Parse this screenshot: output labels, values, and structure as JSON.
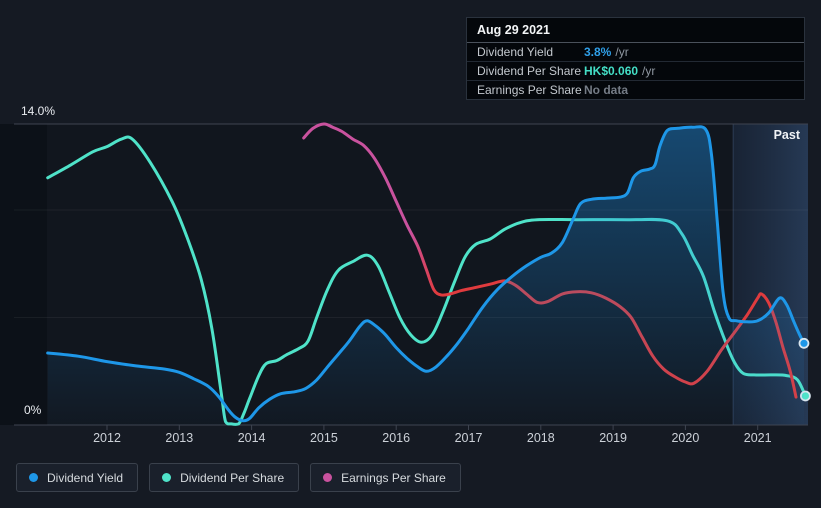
{
  "tooltip": {
    "date": "Aug 29 2021",
    "rows": [
      {
        "label": "Dividend Yield",
        "value": "3.8%",
        "suffix": "/yr",
        "value_color": "#2f9fe8"
      },
      {
        "label": "Dividend Per Share",
        "value": "HK$0.060",
        "suffix": "/yr",
        "value_color": "#44dfc6"
      },
      {
        "label": "Earnings Per Share",
        "value": "No data",
        "suffix": "",
        "value_color": "#757c86"
      }
    ]
  },
  "legend": {
    "items": [
      {
        "label": "Dividend Yield",
        "color": "#1e97e8"
      },
      {
        "label": "Dividend Per Share",
        "color": "#4fe3c9"
      },
      {
        "label": "Earnings Per Share",
        "color": "#c9529e"
      }
    ]
  },
  "chart_data": {
    "type": "line",
    "title": "Dividend history",
    "x_axis": {
      "ticks": [
        2012,
        2013,
        2014,
        2015,
        2016,
        2017,
        2018,
        2019,
        2020,
        2021
      ],
      "range": [
        2011.18,
        2021.7
      ]
    },
    "y_axis": {
      "unit": "%",
      "range": [
        0,
        14
      ],
      "gridlines": [
        0,
        5,
        10,
        14
      ],
      "top_label": "14.0%",
      "bottom_label": "0%"
    },
    "past_band": {
      "label": "Past",
      "start_x": 2020.66
    },
    "legend_position": "bottom-left",
    "series": [
      {
        "name": "Dividend Yield",
        "color": "#1e97e8",
        "area_fill": true,
        "end_dot": true,
        "draw_order": 3,
        "points": [
          [
            2011.18,
            3.35
          ],
          [
            2011.6,
            3.2
          ],
          [
            2012,
            2.95
          ],
          [
            2012.4,
            2.75
          ],
          [
            2012.8,
            2.6
          ],
          [
            2013,
            2.45
          ],
          [
            2013.2,
            2.15
          ],
          [
            2013.4,
            1.8
          ],
          [
            2013.55,
            1.3
          ],
          [
            2013.68,
            0.7
          ],
          [
            2013.78,
            0.35
          ],
          [
            2013.88,
            0.2
          ],
          [
            2013.97,
            0.3
          ],
          [
            2014.1,
            0.8
          ],
          [
            2014.25,
            1.2
          ],
          [
            2014.4,
            1.45
          ],
          [
            2014.6,
            1.55
          ],
          [
            2014.75,
            1.7
          ],
          [
            2014.9,
            2.1
          ],
          [
            2015.05,
            2.7
          ],
          [
            2015.2,
            3.3
          ],
          [
            2015.35,
            3.9
          ],
          [
            2015.5,
            4.6
          ],
          [
            2015.6,
            4.85
          ],
          [
            2015.72,
            4.6
          ],
          [
            2015.85,
            4.2
          ],
          [
            2016,
            3.6
          ],
          [
            2016.15,
            3.1
          ],
          [
            2016.3,
            2.7
          ],
          [
            2016.42,
            2.5
          ],
          [
            2016.55,
            2.7
          ],
          [
            2016.7,
            3.2
          ],
          [
            2016.85,
            3.8
          ],
          [
            2017,
            4.5
          ],
          [
            2017.2,
            5.5
          ],
          [
            2017.4,
            6.3
          ],
          [
            2017.6,
            6.9
          ],
          [
            2017.8,
            7.4
          ],
          [
            2018,
            7.8
          ],
          [
            2018.15,
            8
          ],
          [
            2018.3,
            8.5
          ],
          [
            2018.45,
            9.6
          ],
          [
            2018.55,
            10.3
          ],
          [
            2018.7,
            10.5
          ],
          [
            2018.9,
            10.55
          ],
          [
            2019.1,
            10.6
          ],
          [
            2019.2,
            10.8
          ],
          [
            2019.28,
            11.5
          ],
          [
            2019.38,
            11.8
          ],
          [
            2019.5,
            11.9
          ],
          [
            2019.58,
            12.1
          ],
          [
            2019.65,
            13
          ],
          [
            2019.75,
            13.7
          ],
          [
            2019.9,
            13.8
          ],
          [
            2020.1,
            13.85
          ],
          [
            2020.28,
            13.75
          ],
          [
            2020.36,
            12.6
          ],
          [
            2020.44,
            9.5
          ],
          [
            2020.52,
            6.2
          ],
          [
            2020.6,
            5
          ],
          [
            2020.7,
            4.85
          ],
          [
            2020.85,
            4.8
          ],
          [
            2021,
            4.85
          ],
          [
            2021.15,
            5.2
          ],
          [
            2021.3,
            5.9
          ],
          [
            2021.4,
            5.6
          ],
          [
            2021.5,
            4.8
          ],
          [
            2021.58,
            4.2
          ],
          [
            2021.64,
            3.8
          ]
        ]
      },
      {
        "name": "Dividend Per Share",
        "color": "#4fe3c9",
        "area_fill": false,
        "end_dot": true,
        "draw_order": 1,
        "points": [
          [
            2011.18,
            11.5
          ],
          [
            2011.5,
            12.1
          ],
          [
            2011.8,
            12.7
          ],
          [
            2012,
            12.95
          ],
          [
            2012.2,
            13.3
          ],
          [
            2012.35,
            13.3
          ],
          [
            2012.6,
            12.2
          ],
          [
            2012.9,
            10.4
          ],
          [
            2013.1,
            8.8
          ],
          [
            2013.3,
            6.8
          ],
          [
            2013.45,
            4.5
          ],
          [
            2013.58,
            1.5
          ],
          [
            2013.64,
            0.15
          ],
          [
            2013.72,
            0.05
          ],
          [
            2013.82,
            0.05
          ],
          [
            2013.9,
            0.6
          ],
          [
            2013.98,
            1.3
          ],
          [
            2014.1,
            2.3
          ],
          [
            2014.2,
            2.85
          ],
          [
            2014.35,
            3
          ],
          [
            2014.5,
            3.3
          ],
          [
            2014.65,
            3.55
          ],
          [
            2014.78,
            3.9
          ],
          [
            2014.9,
            5
          ],
          [
            2015.05,
            6.3
          ],
          [
            2015.2,
            7.2
          ],
          [
            2015.4,
            7.6
          ],
          [
            2015.6,
            7.9
          ],
          [
            2015.75,
            7.4
          ],
          [
            2015.9,
            6.2
          ],
          [
            2016.05,
            5
          ],
          [
            2016.2,
            4.2
          ],
          [
            2016.35,
            3.85
          ],
          [
            2016.5,
            4.2
          ],
          [
            2016.65,
            5.3
          ],
          [
            2016.8,
            6.6
          ],
          [
            2016.95,
            7.8
          ],
          [
            2017.1,
            8.4
          ],
          [
            2017.3,
            8.65
          ],
          [
            2017.5,
            9.1
          ],
          [
            2017.7,
            9.4
          ],
          [
            2017.95,
            9.55
          ],
          [
            2018.5,
            9.55
          ],
          [
            2019.2,
            9.55
          ],
          [
            2019.75,
            9.5
          ],
          [
            2019.95,
            8.9
          ],
          [
            2020.1,
            7.9
          ],
          [
            2020.25,
            6.9
          ],
          [
            2020.4,
            5.3
          ],
          [
            2020.55,
            3.9
          ],
          [
            2020.68,
            2.9
          ],
          [
            2020.8,
            2.4
          ],
          [
            2020.95,
            2.33
          ],
          [
            2021.2,
            2.33
          ],
          [
            2021.4,
            2.3
          ],
          [
            2021.55,
            2.1
          ],
          [
            2021.66,
            1.35
          ]
        ]
      },
      {
        "name": "Earnings Per Share",
        "color_start": "#c9529e",
        "color_end": "#e03b3e",
        "gradient_switch_x": [
          2016.2,
          2016.55
        ],
        "area_fill": false,
        "end_dot": false,
        "draw_order": 2,
        "points": [
          [
            2014.72,
            13.35
          ],
          [
            2014.85,
            13.8
          ],
          [
            2015,
            14
          ],
          [
            2015.12,
            13.85
          ],
          [
            2015.25,
            13.65
          ],
          [
            2015.4,
            13.3
          ],
          [
            2015.55,
            13
          ],
          [
            2015.7,
            12.4
          ],
          [
            2015.85,
            11.5
          ],
          [
            2016,
            10.4
          ],
          [
            2016.15,
            9.3
          ],
          [
            2016.3,
            8.3
          ],
          [
            2016.42,
            7.2
          ],
          [
            2016.52,
            6.3
          ],
          [
            2016.62,
            6.05
          ],
          [
            2016.75,
            6.1
          ],
          [
            2016.9,
            6.25
          ],
          [
            2017.1,
            6.4
          ],
          [
            2017.3,
            6.55
          ],
          [
            2017.5,
            6.7
          ],
          [
            2017.65,
            6.5
          ],
          [
            2017.8,
            6.1
          ],
          [
            2017.95,
            5.7
          ],
          [
            2018.1,
            5.75
          ],
          [
            2018.3,
            6.1
          ],
          [
            2018.5,
            6.2
          ],
          [
            2018.7,
            6.15
          ],
          [
            2018.9,
            5.9
          ],
          [
            2019.1,
            5.5
          ],
          [
            2019.25,
            5
          ],
          [
            2019.4,
            4.1
          ],
          [
            2019.55,
            3.2
          ],
          [
            2019.7,
            2.6
          ],
          [
            2019.85,
            2.25
          ],
          [
            2020,
            2
          ],
          [
            2020.12,
            1.95
          ],
          [
            2020.3,
            2.5
          ],
          [
            2020.5,
            3.5
          ],
          [
            2020.7,
            4.4
          ],
          [
            2020.85,
            5.1
          ],
          [
            2021,
            5.9
          ],
          [
            2021.05,
            6.1
          ],
          [
            2021.15,
            5.7
          ],
          [
            2021.25,
            4.8
          ],
          [
            2021.35,
            3.6
          ],
          [
            2021.45,
            2.5
          ],
          [
            2021.53,
            1.3
          ]
        ]
      }
    ]
  }
}
